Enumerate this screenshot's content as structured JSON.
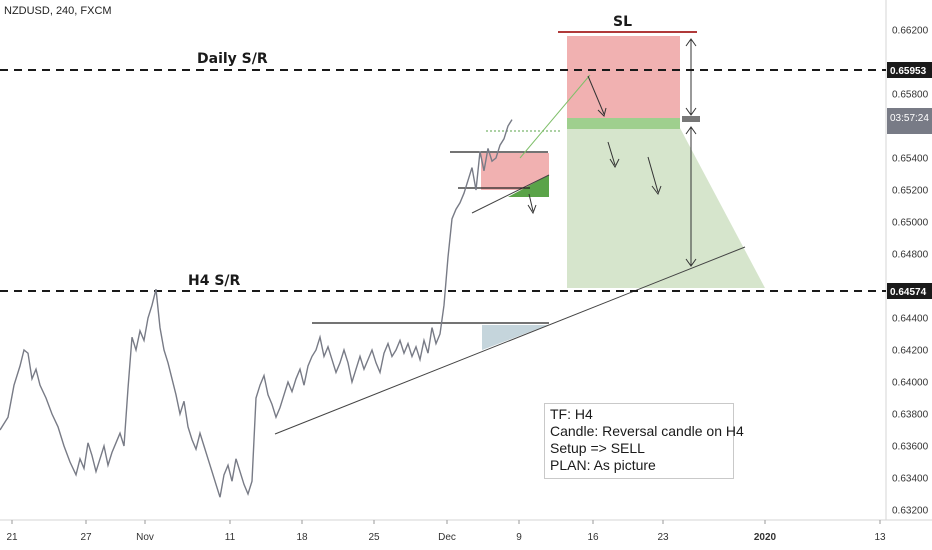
{
  "title": "NZDUSD, 240, FXCM",
  "note": {
    "lines": [
      "TF: H4",
      "Candle: Reversal candle on H4",
      "Setup => SELL",
      "PLAN: As picture"
    ]
  },
  "levels": {
    "daily_label": "Daily S/R",
    "daily_value": 0.65953,
    "daily_tag": "0.65953",
    "h4_label": "H4 S/R",
    "h4_value": 0.64574,
    "h4_tag": "0.64574",
    "sl_label": "SL",
    "countdown": "03:57:24"
  },
  "colors": {
    "line": "#787b86",
    "risk": "#f0a8a8",
    "reward": "#cfe0c3",
    "entry": "#9fcf8e",
    "sl_line": "#b03a3a",
    "green_flag": "#5aa348",
    "blue_zone": "#c5d5dc"
  },
  "chart_data": {
    "type": "line",
    "ylim": [
      0.6316,
      0.664
    ],
    "y_ticks": [
      "0.66200",
      "0.65800",
      "0.65400",
      "0.65200",
      "0.65000",
      "0.64800",
      "0.64400",
      "0.64200",
      "0.64000",
      "0.63800",
      "0.63600",
      "0.63400",
      "0.63200"
    ],
    "y_tick_values": [
      0.662,
      0.658,
      0.654,
      0.652,
      0.65,
      0.648,
      0.644,
      0.642,
      0.64,
      0.638,
      0.636,
      0.634,
      0.632
    ],
    "x_ticks": [
      "21",
      "27",
      "Nov",
      "11",
      "18",
      "25",
      "Dec",
      "9",
      "16",
      "23",
      "2020",
      "13"
    ],
    "x_tick_pos": [
      12,
      86,
      145,
      230,
      302,
      374,
      447,
      519,
      593,
      663,
      765,
      880
    ],
    "series": [
      {
        "x": [
          0,
          8,
          14,
          20,
          24,
          28,
          32,
          36,
          40,
          46,
          52,
          58,
          64,
          70,
          76,
          80,
          84,
          88,
          92,
          96,
          100,
          104,
          108,
          112,
          116,
          120,
          124,
          128,
          132,
          136,
          140,
          144,
          148,
          152,
          156,
          160,
          164,
          168,
          172,
          176,
          180,
          184,
          188,
          192,
          196,
          200,
          204,
          208,
          212,
          216,
          220,
          224,
          228,
          232,
          236,
          240,
          244,
          248,
          252,
          256,
          260,
          264,
          268,
          272,
          276,
          280,
          284,
          288,
          292,
          296,
          300,
          304,
          308,
          312,
          316,
          320,
          324,
          328,
          332,
          336,
          340,
          344,
          348,
          352,
          356,
          360,
          364,
          368,
          372,
          376,
          380,
          384,
          388,
          392,
          396,
          400,
          404,
          408,
          412,
          416,
          420,
          424,
          428,
          432,
          436,
          440,
          444,
          448,
          452,
          456,
          460,
          464,
          468,
          472,
          476,
          480,
          484,
          488,
          492,
          496,
          500,
          504,
          508,
          512
        ],
        "y": [
          0.637,
          0.6378,
          0.6398,
          0.641,
          0.642,
          0.6418,
          0.6402,
          0.6408,
          0.6398,
          0.639,
          0.638,
          0.6372,
          0.636,
          0.635,
          0.6342,
          0.6352,
          0.6346,
          0.6362,
          0.6354,
          0.6344,
          0.6352,
          0.636,
          0.6348,
          0.6356,
          0.6362,
          0.6368,
          0.636,
          0.6396,
          0.6428,
          0.642,
          0.6432,
          0.6426,
          0.644,
          0.6448,
          0.6458,
          0.6434,
          0.642,
          0.6412,
          0.6402,
          0.6392,
          0.638,
          0.6388,
          0.6372,
          0.6364,
          0.6358,
          0.6368,
          0.636,
          0.6352,
          0.6344,
          0.6336,
          0.6328,
          0.6342,
          0.6348,
          0.6338,
          0.6352,
          0.6344,
          0.6336,
          0.633,
          0.6338,
          0.639,
          0.6398,
          0.6404,
          0.6392,
          0.6386,
          0.6378,
          0.6384,
          0.6392,
          0.64,
          0.6394,
          0.6402,
          0.6408,
          0.6398,
          0.641,
          0.6416,
          0.642,
          0.6428,
          0.6416,
          0.6422,
          0.6414,
          0.6406,
          0.6412,
          0.642,
          0.6412,
          0.64,
          0.6408,
          0.6416,
          0.6408,
          0.6414,
          0.642,
          0.6412,
          0.6406,
          0.6418,
          0.6424,
          0.6416,
          0.642,
          0.6426,
          0.6418,
          0.6424,
          0.6416,
          0.6422,
          0.6414,
          0.6426,
          0.6418,
          0.6434,
          0.6424,
          0.643,
          0.6448,
          0.6478,
          0.6502,
          0.6508,
          0.6512,
          0.6518,
          0.6526,
          0.6534,
          0.652,
          0.6544,
          0.6532,
          0.6546,
          0.6538,
          0.654,
          0.6548,
          0.6552,
          0.656,
          0.6564
        ]
      }
    ]
  }
}
